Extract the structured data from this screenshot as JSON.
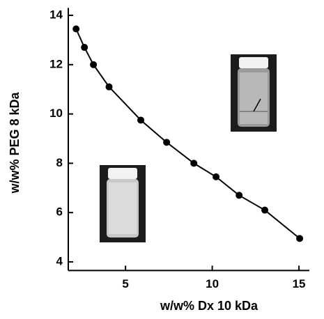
{
  "chart_data": {
    "type": "line",
    "x_label": "w/w% Dx 10 kDa",
    "y_label": "w/w% PEG 8 kDa",
    "x": [
      2.15,
      2.63,
      3.15,
      4.05,
      5.88,
      7.37,
      8.94,
      10.22,
      11.55,
      13.03,
      15.04
    ],
    "series": [
      {
        "color": "#000000",
        "values": [
          13.45,
          12.7,
          12.0,
          11.1,
          9.75,
          8.85,
          8.0,
          7.45,
          6.7,
          6.1,
          4.95
        ]
      }
    ],
    "xlim": [
      1.7,
      15.6
    ],
    "xticks": [
      5,
      10,
      15
    ],
    "ylim": [
      3.65,
      14.3
    ],
    "yticks": [
      4,
      6,
      8,
      10,
      12,
      14
    ]
  }
}
